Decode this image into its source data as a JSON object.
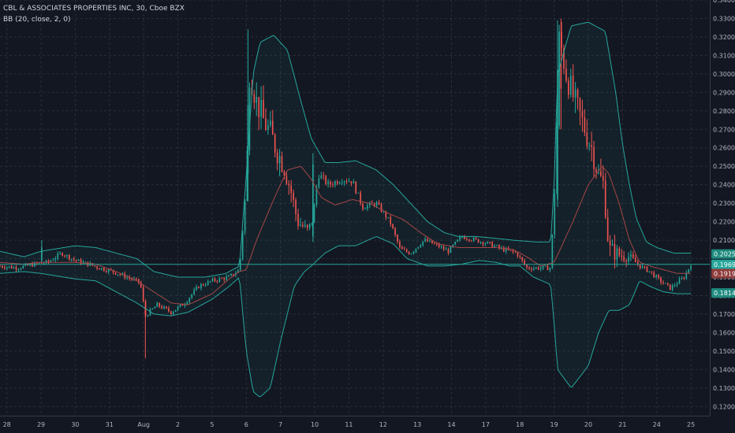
{
  "header": {
    "symbol_line": "CBL & ASSOCIATES PROPERTIES INC, 30, Cboe BZX",
    "indicator_line": "BB (20, close, 2, 0)"
  },
  "colors": {
    "background": "#131722",
    "grid": "#2a2e39",
    "axis_text": "#b2b5be",
    "up": "#26a69a",
    "down": "#ef5350",
    "band": "#26a69a",
    "basis": "#a64646",
    "band_fill": "#26a69a",
    "last_price_line": "#26a69a",
    "label_upper": "#1e8a7e",
    "label_price": "#26a69a",
    "label_basis": "#8e3b3b",
    "label_lower": "#1e8a7e"
  },
  "chart_data": {
    "type": "candlestick",
    "title": "CBL & ASSOCIATES PROPERTIES INC, 30, Cboe BZX",
    "indicator": "BB (20, close, 2, 0)",
    "ylim": [
      0.115,
      0.34
    ],
    "y_ticks": [
      0.34,
      0.33,
      0.32,
      0.31,
      0.3,
      0.29,
      0.28,
      0.27,
      0.26,
      0.25,
      0.24,
      0.23,
      0.22,
      0.21,
      0.2,
      0.19,
      0.18,
      0.17,
      0.16,
      0.15,
      0.14,
      0.13,
      0.12
    ],
    "y_tick_labels": [
      "0.3400",
      "0.3300",
      "0.3200",
      "0.3100",
      "0.3000",
      "0.2900",
      "0.2800",
      "0.2700",
      "0.2600",
      "0.2500",
      "0.2400",
      "0.2300",
      "0.2200",
      "0.2100",
      "",
      "0.1900",
      "0.1800",
      "0.1700",
      "0.1600",
      "0.1500",
      "0.1400",
      "0.1300",
      "0.1200"
    ],
    "x_labels": [
      "28",
      "29",
      "30",
      "31",
      "Aug",
      "2",
      "5",
      "6",
      "7",
      "10",
      "11",
      "12",
      "13",
      "14",
      "17",
      "18",
      "19",
      "20",
      "21",
      "24",
      "25"
    ],
    "x_label_positions": [
      0.0,
      1.0,
      2.0,
      3.0,
      4.0,
      5.0,
      6.0,
      7.0,
      8.0,
      9.0,
      10.0,
      11.0,
      12.0,
      13.0,
      14.0,
      15.0,
      16.0,
      17.0,
      18.0,
      19.0,
      20.0
    ],
    "x_range": [
      -0.2,
      20.55
    ],
    "grid": true,
    "price_labels": [
      {
        "name": "upper-band",
        "value": 0.2025,
        "text": "0.2025"
      },
      {
        "name": "last-price",
        "value": 0.1969,
        "text": "0.1969"
      },
      {
        "name": "basis",
        "value": 0.1919,
        "text": "0.1919"
      },
      {
        "name": "lower-band",
        "value": 0.1814,
        "text": "0.1814"
      }
    ],
    "last_price": 0.1969,
    "bb_upper_anchors": [
      [
        -0.2,
        0.204
      ],
      [
        0.5,
        0.201
      ],
      [
        1.0,
        0.204
      ],
      [
        2.0,
        0.207
      ],
      [
        2.6,
        0.206
      ],
      [
        3.2,
        0.203
      ],
      [
        3.8,
        0.2
      ],
      [
        4.3,
        0.193
      ],
      [
        5.0,
        0.19
      ],
      [
        5.8,
        0.19
      ],
      [
        6.4,
        0.192
      ],
      [
        6.8,
        0.196
      ],
      [
        7.0,
        0.245
      ],
      [
        7.2,
        0.3
      ],
      [
        7.4,
        0.317
      ],
      [
        7.8,
        0.321
      ],
      [
        8.2,
        0.313
      ],
      [
        8.6,
        0.285
      ],
      [
        8.9,
        0.265
      ],
      [
        9.3,
        0.252
      ],
      [
        9.7,
        0.252
      ],
      [
        10.2,
        0.253
      ],
      [
        10.8,
        0.248
      ],
      [
        11.3,
        0.24
      ],
      [
        11.7,
        0.232
      ],
      [
        12.3,
        0.22
      ],
      [
        12.8,
        0.214
      ],
      [
        13.2,
        0.212
      ],
      [
        13.7,
        0.212
      ],
      [
        14.3,
        0.211
      ],
      [
        14.8,
        0.21
      ],
      [
        15.5,
        0.209
      ],
      [
        15.9,
        0.209
      ],
      [
        16.0,
        0.24
      ],
      [
        16.1,
        0.3
      ],
      [
        16.5,
        0.326
      ],
      [
        17.0,
        0.328
      ],
      [
        17.5,
        0.323
      ],
      [
        17.8,
        0.29
      ],
      [
        18.0,
        0.262
      ],
      [
        18.2,
        0.24
      ],
      [
        18.4,
        0.222
      ],
      [
        18.7,
        0.209
      ],
      [
        19.0,
        0.206
      ],
      [
        19.5,
        0.203
      ],
      [
        20.0,
        0.203
      ]
    ],
    "bb_lower_anchors": [
      [
        -0.2,
        0.192
      ],
      [
        0.5,
        0.193
      ],
      [
        1.0,
        0.192
      ],
      [
        2.0,
        0.189
      ],
      [
        2.6,
        0.188
      ],
      [
        3.2,
        0.182
      ],
      [
        3.8,
        0.176
      ],
      [
        4.3,
        0.17
      ],
      [
        4.8,
        0.169
      ],
      [
        5.3,
        0.171
      ],
      [
        6.0,
        0.178
      ],
      [
        6.5,
        0.185
      ],
      [
        6.8,
        0.19
      ],
      [
        7.0,
        0.15
      ],
      [
        7.2,
        0.128
      ],
      [
        7.4,
        0.125
      ],
      [
        7.7,
        0.13
      ],
      [
        8.0,
        0.155
      ],
      [
        8.4,
        0.185
      ],
      [
        8.7,
        0.193
      ],
      [
        8.9,
        0.196
      ],
      [
        9.3,
        0.203
      ],
      [
        9.7,
        0.207
      ],
      [
        10.2,
        0.207
      ],
      [
        10.8,
        0.212
      ],
      [
        11.3,
        0.208
      ],
      [
        11.7,
        0.2
      ],
      [
        12.3,
        0.196
      ],
      [
        12.8,
        0.196
      ],
      [
        13.3,
        0.197
      ],
      [
        13.8,
        0.199
      ],
      [
        14.3,
        0.198
      ],
      [
        14.7,
        0.196
      ],
      [
        15.0,
        0.196
      ],
      [
        15.4,
        0.19
      ],
      [
        15.9,
        0.186
      ],
      [
        16.0,
        0.165
      ],
      [
        16.1,
        0.14
      ],
      [
        16.5,
        0.13
      ],
      [
        17.0,
        0.142
      ],
      [
        17.3,
        0.16
      ],
      [
        17.6,
        0.172
      ],
      [
        17.9,
        0.172
      ],
      [
        18.2,
        0.175
      ],
      [
        18.5,
        0.188
      ],
      [
        18.8,
        0.185
      ],
      [
        19.2,
        0.182
      ],
      [
        19.6,
        0.181
      ],
      [
        20.0,
        0.181
      ]
    ],
    "bb_basis_anchors": [
      [
        -0.2,
        0.198
      ],
      [
        0.5,
        0.197
      ],
      [
        1.0,
        0.198
      ],
      [
        2.0,
        0.198
      ],
      [
        2.6,
        0.197
      ],
      [
        3.2,
        0.193
      ],
      [
        3.8,
        0.188
      ],
      [
        4.3,
        0.182
      ],
      [
        4.8,
        0.176
      ],
      [
        5.3,
        0.175
      ],
      [
        6.0,
        0.181
      ],
      [
        6.5,
        0.189
      ],
      [
        6.8,
        0.193
      ],
      [
        7.0,
        0.194
      ],
      [
        7.3,
        0.21
      ],
      [
        7.8,
        0.232
      ],
      [
        8.2,
        0.248
      ],
      [
        8.6,
        0.25
      ],
      [
        8.9,
        0.243
      ],
      [
        9.2,
        0.233
      ],
      [
        9.6,
        0.229
      ],
      [
        10.1,
        0.232
      ],
      [
        10.6,
        0.23
      ],
      [
        11.1,
        0.225
      ],
      [
        11.6,
        0.221
      ],
      [
        12.1,
        0.214
      ],
      [
        12.6,
        0.208
      ],
      [
        13.2,
        0.206
      ],
      [
        13.8,
        0.206
      ],
      [
        14.3,
        0.206
      ],
      [
        14.8,
        0.205
      ],
      [
        15.2,
        0.201
      ],
      [
        15.6,
        0.196
      ],
      [
        16.0,
        0.198
      ],
      [
        16.5,
        0.218
      ],
      [
        17.0,
        0.24
      ],
      [
        17.4,
        0.25
      ],
      [
        17.6,
        0.246
      ],
      [
        17.9,
        0.23
      ],
      [
        18.2,
        0.21
      ],
      [
        18.5,
        0.198
      ],
      [
        18.8,
        0.196
      ],
      [
        19.2,
        0.194
      ],
      [
        19.6,
        0.192
      ],
      [
        20.0,
        0.192
      ]
    ],
    "close_anchors": [
      [
        -0.2,
        0.196
      ],
      [
        0.3,
        0.195
      ],
      [
        0.8,
        0.197
      ],
      [
        1.2,
        0.198
      ],
      [
        1.6,
        0.203
      ],
      [
        2.0,
        0.199
      ],
      [
        2.4,
        0.197
      ],
      [
        2.7,
        0.195
      ],
      [
        3.1,
        0.193
      ],
      [
        3.5,
        0.19
      ],
      [
        3.9,
        0.187
      ],
      [
        4.05,
        0.169
      ],
      [
        4.4,
        0.175
      ],
      [
        4.8,
        0.171
      ],
      [
        5.2,
        0.176
      ],
      [
        5.6,
        0.185
      ],
      [
        6.0,
        0.188
      ],
      [
        6.5,
        0.19
      ],
      [
        6.8,
        0.194
      ],
      [
        7.0,
        0.24
      ],
      [
        7.1,
        0.3
      ],
      [
        7.3,
        0.285
      ],
      [
        7.5,
        0.275
      ],
      [
        7.7,
        0.268
      ],
      [
        7.9,
        0.258
      ],
      [
        8.1,
        0.25
      ],
      [
        8.3,
        0.237
      ],
      [
        8.5,
        0.22
      ],
      [
        8.8,
        0.215
      ],
      [
        8.95,
        0.222
      ],
      [
        9.1,
        0.246
      ],
      [
        9.4,
        0.24
      ],
      [
        9.8,
        0.243
      ],
      [
        10.1,
        0.242
      ],
      [
        10.4,
        0.228
      ],
      [
        10.8,
        0.23
      ],
      [
        11.2,
        0.22
      ],
      [
        11.5,
        0.205
      ],
      [
        11.8,
        0.203
      ],
      [
        12.2,
        0.21
      ],
      [
        12.6,
        0.207
      ],
      [
        12.9,
        0.204
      ],
      [
        13.3,
        0.212
      ],
      [
        13.7,
        0.21
      ],
      [
        14.1,
        0.208
      ],
      [
        14.5,
        0.205
      ],
      [
        14.9,
        0.203
      ],
      [
        15.2,
        0.195
      ],
      [
        15.6,
        0.195
      ],
      [
        15.9,
        0.195
      ],
      [
        16.05,
        0.25
      ],
      [
        16.15,
        0.32
      ],
      [
        16.35,
        0.3
      ],
      [
        16.6,
        0.285
      ],
      [
        16.9,
        0.27
      ],
      [
        17.1,
        0.26
      ],
      [
        17.3,
        0.245
      ],
      [
        17.45,
        0.24
      ],
      [
        17.6,
        0.205
      ],
      [
        17.9,
        0.202
      ],
      [
        18.2,
        0.201
      ],
      [
        18.5,
        0.196
      ],
      [
        18.8,
        0.193
      ],
      [
        19.1,
        0.188
      ],
      [
        19.4,
        0.184
      ],
      [
        19.8,
        0.19
      ],
      [
        20.0,
        0.197
      ]
    ],
    "candle_count": 300,
    "candle_x_range": [
      -0.2,
      20.0
    ],
    "spikes": [
      {
        "x": 4.05,
        "open": 0.174,
        "close": 0.169,
        "high": 0.177,
        "low": 0.146
      },
      {
        "x": 7.05,
        "open": 0.246,
        "close": 0.283,
        "high": 0.324,
        "low": 0.231
      },
      {
        "x": 16.1,
        "open": 0.232,
        "close": 0.302,
        "high": 0.329,
        "low": 0.228
      },
      {
        "x": 16.2,
        "open": 0.305,
        "close": 0.292,
        "high": 0.33,
        "low": 0.27
      },
      {
        "x": 8.95,
        "open": 0.212,
        "close": 0.251,
        "high": 0.257,
        "low": 0.209
      },
      {
        "x": 1.02,
        "open": 0.199,
        "close": 0.206,
        "high": 0.21,
        "low": 0.198
      }
    ]
  }
}
